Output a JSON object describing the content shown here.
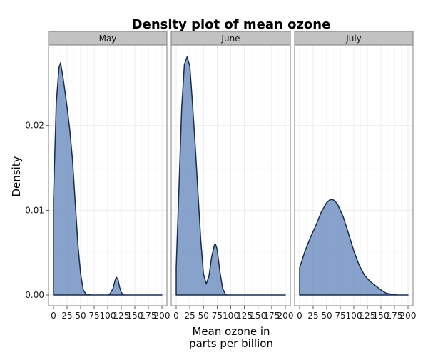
{
  "chart_data": {
    "type": "area",
    "title": "Density plot of mean ozone",
    "xlabel": [
      "Mean ozone in",
      "parts per billion"
    ],
    "ylabel": "Density",
    "xlim": [
      0,
      200
    ],
    "ylim": [
      0,
      0.0295
    ],
    "x_ticks": [
      0,
      25,
      50,
      75,
      100,
      125,
      150,
      175,
      200
    ],
    "x_tick_labels": [
      "0",
      "25",
      "50",
      "75",
      "100",
      "125",
      "150",
      "175",
      "200"
    ],
    "y_ticks": [
      0,
      0.01,
      0.02
    ],
    "y_tick_labels": [
      "0.00",
      "0.01",
      "0.02"
    ],
    "grid": true,
    "fill_color": "#6d8dc0",
    "line_color": "#1a2b4c",
    "strip_color": "#c2c2c2",
    "panels": [
      {
        "facet": "May",
        "x": [
          0,
          5,
          10,
          13,
          18,
          25,
          30,
          35,
          40,
          45,
          50,
          55,
          60,
          70,
          80,
          90,
          100,
          105,
          110,
          113,
          116,
          119,
          122,
          125,
          130,
          140,
          160,
          180,
          200
        ],
        "y": [
          0.0113,
          0.0225,
          0.0268,
          0.0274,
          0.0255,
          0.0222,
          0.0195,
          0.016,
          0.011,
          0.006,
          0.0025,
          0.0006,
          0.0001,
          0.0,
          0.0,
          0.0,
          0.0,
          0.0002,
          0.0008,
          0.0016,
          0.0021,
          0.0018,
          0.0009,
          0.0003,
          0.0,
          0.0,
          0.0,
          0.0,
          0.0
        ]
      },
      {
        "facet": "June",
        "x": [
          0,
          5,
          10,
          15,
          20,
          25,
          30,
          35,
          40,
          45,
          50,
          55,
          60,
          65,
          70,
          72,
          75,
          80,
          85,
          90,
          95,
          100,
          110,
          130,
          150,
          175,
          200
        ],
        "y": [
          0.0032,
          0.0125,
          0.022,
          0.0272,
          0.0281,
          0.027,
          0.0225,
          0.0175,
          0.012,
          0.0065,
          0.0025,
          0.0013,
          0.0022,
          0.0045,
          0.0059,
          0.006,
          0.0054,
          0.0028,
          0.0008,
          0.0001,
          0.0,
          0.0,
          0.0,
          0.0,
          0.0,
          0.0,
          0.0
        ]
      },
      {
        "facet": "July",
        "x": [
          0,
          10,
          20,
          30,
          40,
          50,
          55,
          60,
          65,
          70,
          80,
          90,
          100,
          110,
          120,
          130,
          140,
          150,
          160,
          170,
          180,
          200
        ],
        "y": [
          0.0032,
          0.0052,
          0.0068,
          0.0082,
          0.0098,
          0.0109,
          0.0112,
          0.0113,
          0.0111,
          0.0107,
          0.0093,
          0.0073,
          0.0052,
          0.0035,
          0.0023,
          0.0016,
          0.0011,
          0.0006,
          0.0002,
          0.0001,
          0.0,
          0.0
        ]
      }
    ]
  }
}
